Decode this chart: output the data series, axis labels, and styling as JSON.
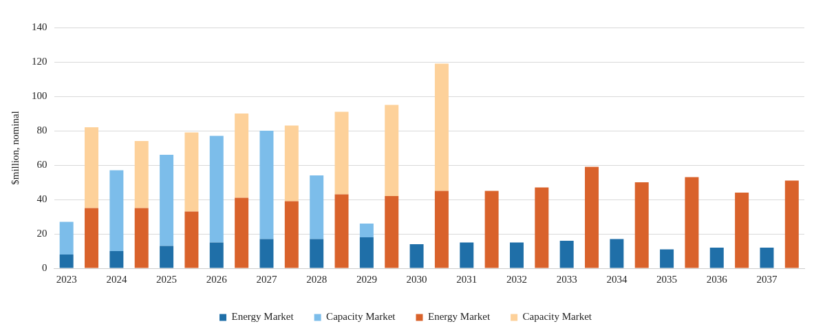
{
  "chart_data": {
    "type": "bar",
    "stacked": true,
    "ylabel": "$million, nominal",
    "categories": [
      "2023",
      null,
      "2024",
      null,
      "2025",
      null,
      "2026",
      null,
      "2027",
      null,
      "2028",
      null,
      "2029",
      null,
      "2030",
      null,
      "2031",
      null,
      "2032",
      null,
      "2033",
      null,
      "2034",
      null,
      "2035",
      null,
      "2036",
      null,
      "2037",
      null
    ],
    "series": [
      {
        "name": "Energy Market",
        "color": "#1f6fa8",
        "values": [
          8,
          null,
          10,
          null,
          13,
          null,
          15,
          null,
          17,
          null,
          17,
          null,
          18,
          null,
          14,
          null,
          15,
          null,
          15,
          null,
          16,
          null,
          17,
          null,
          11,
          null,
          12,
          null,
          12,
          null
        ]
      },
      {
        "name": "Capacity Market",
        "color": "#7cbdea",
        "values": [
          19,
          null,
          47,
          null,
          53,
          null,
          62,
          null,
          63,
          null,
          37,
          null,
          8,
          null,
          null,
          null,
          null,
          null,
          null,
          null,
          null,
          null,
          null,
          null,
          null,
          null,
          null,
          null,
          null,
          null
        ]
      },
      {
        "name": "Energy Market",
        "color": "#d9622b",
        "values": [
          null,
          35,
          null,
          35,
          null,
          33,
          null,
          41,
          null,
          39,
          null,
          43,
          null,
          42,
          null,
          45,
          null,
          45,
          null,
          47,
          null,
          59,
          null,
          50,
          null,
          53,
          null,
          44,
          null,
          51
        ]
      },
      {
        "name": "Capacity Market",
        "color": "#fdd19a",
        "values": [
          null,
          47,
          null,
          39,
          null,
          46,
          null,
          49,
          null,
          44,
          null,
          48,
          null,
          53,
          null,
          74,
          null,
          null,
          null,
          null,
          null,
          null,
          null,
          null,
          null,
          null,
          null,
          null,
          null,
          null
        ]
      }
    ],
    "ylim": [
      0,
      140
    ],
    "yticks": [
      0,
      20,
      40,
      60,
      80,
      100,
      120,
      140
    ],
    "grid": "y",
    "legend": "bottom"
  }
}
